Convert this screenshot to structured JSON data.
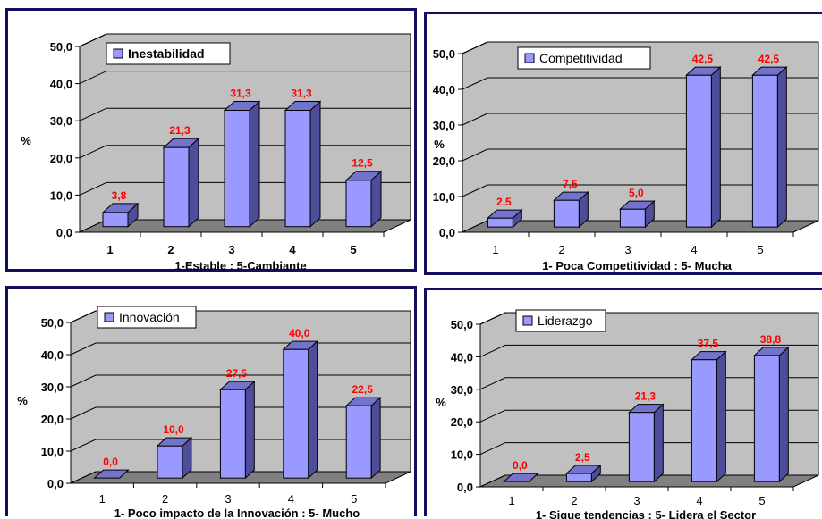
{
  "chart_data": [
    {
      "type": "bar",
      "categories": [
        "1",
        "2",
        "3",
        "4",
        "5"
      ],
      "series": [
        {
          "name": "Inestabilidad",
          "values": [
            3.8,
            21.3,
            31.3,
            31.3,
            12.5
          ]
        }
      ],
      "value_labels": [
        "3,8",
        "21,3",
        "31,3",
        "31,3",
        "12,5"
      ],
      "xlabel": "1-Estable :  5-Cambiante",
      "ylabel": "%",
      "yticks": [
        "0,0",
        "10,0",
        "20,0",
        "30,0",
        "40,0",
        "50,0"
      ],
      "ylim": [
        0,
        50
      ],
      "legend_position": "top-left",
      "bold_legend": true,
      "bold_categories": true,
      "bar_color": "#9999ff"
    },
    {
      "type": "bar",
      "categories": [
        "1",
        "2",
        "3",
        "4",
        "5"
      ],
      "series": [
        {
          "name": "Competitividad",
          "values": [
            2.5,
            7.5,
            5.0,
            42.5,
            42.5
          ]
        }
      ],
      "value_labels": [
        "2,5",
        "7,5",
        "5,0",
        "42,5",
        "42,5"
      ],
      "xlabel": "1- Poca Competitividad :  5- Mucha",
      "ylabel": "%",
      "yticks": [
        "0,0",
        "10,0",
        "20,0",
        "30,0",
        "40,0",
        "50,0"
      ],
      "ylim": [
        0,
        50
      ],
      "legend_position": "top-left",
      "bold_legend": false,
      "bold_categories": false,
      "bar_color": "#9999ff"
    },
    {
      "type": "bar",
      "categories": [
        "1",
        "2",
        "3",
        "4",
        "5"
      ],
      "series": [
        {
          "name": "Innovación",
          "values": [
            0.0,
            10.0,
            27.5,
            40.0,
            22.5
          ]
        }
      ],
      "value_labels": [
        "0,0",
        "10,0",
        "27,5",
        "40,0",
        "22,5"
      ],
      "xlabel": "1- Poco impacto de la Innovación :  5- Mucho",
      "ylabel": "%",
      "yticks": [
        "0,0",
        "10,0",
        "20,0",
        "30,0",
        "40,0",
        "50,0"
      ],
      "ylim": [
        0,
        50
      ],
      "legend_position": "top-left",
      "bold_legend": false,
      "bold_categories": false,
      "bar_color": "#9999ff"
    },
    {
      "type": "bar",
      "categories": [
        "1",
        "2",
        "3",
        "4",
        "5"
      ],
      "series": [
        {
          "name": "Liderazgo",
          "values": [
            0.0,
            2.5,
            21.3,
            37.5,
            38.8
          ]
        }
      ],
      "value_labels": [
        "0,0",
        "2,5",
        "21,3",
        "37,5",
        "38,8"
      ],
      "xlabel": "1- Sigue tendencias :  5- Lidera el Sector",
      "ylabel": "%",
      "yticks": [
        "0,0",
        "10,0",
        "20,0",
        "30,0",
        "40,0",
        "50,0"
      ],
      "ylim": [
        0,
        50
      ],
      "legend_position": "top-left",
      "bold_legend": false,
      "bold_categories": false,
      "bar_color": "#9999ff"
    }
  ]
}
